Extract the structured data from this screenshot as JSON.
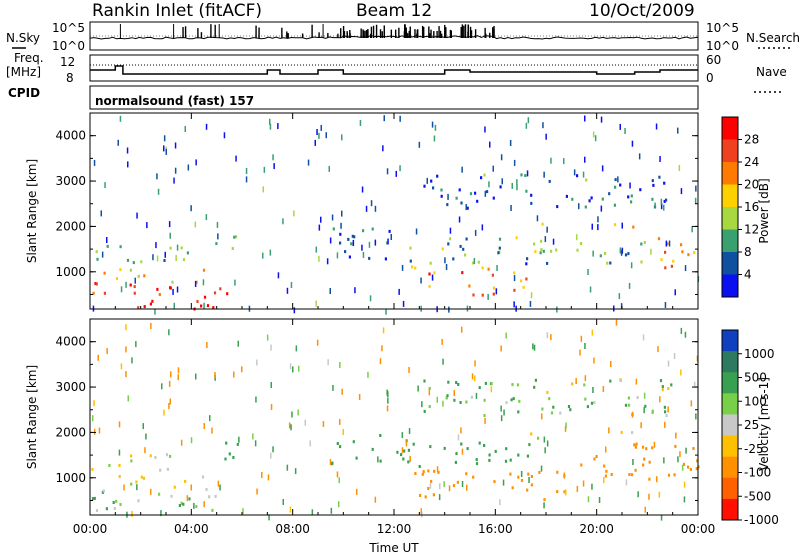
{
  "header": {
    "station": "Rankin Inlet (fitACF)",
    "beam": "Beam 12",
    "date": "10/Oct/2009"
  },
  "panels": {
    "nsky_label": "N.Sky",
    "nsky_ticks": [
      "10^5",
      "10^0"
    ],
    "nsearch_label": "N.Search",
    "nsearch_ticks": [
      "10^5",
      "10^0"
    ],
    "freq_label_1": "Freq.",
    "freq_label_2": "[MHz]",
    "freq_ticks": [
      "12",
      "8"
    ],
    "nave_label": "Nave",
    "nave_ticks": [
      "60",
      "0"
    ],
    "cpid_label": "CPID",
    "cpid_text": "normalsound (fast) 157"
  },
  "axes": {
    "ylabel": "Slant Range [km]",
    "yticks": [
      "4000",
      "3000",
      "2000",
      "1000"
    ],
    "xticks": [
      "00:00",
      "04:00",
      "08:00",
      "12:00",
      "16:00",
      "20:00",
      "00:00"
    ],
    "xlabel": "Time UT"
  },
  "power_colorbar": {
    "label": "Power [dB]",
    "ticks": [
      "28",
      "24",
      "20",
      "16",
      "12",
      "8",
      "4"
    ],
    "colors": [
      "#ff0000",
      "#f04020",
      "#ff7a00",
      "#ffd000",
      "#a8d840",
      "#3aa070",
      "#1050a0",
      "#0a10f0"
    ]
  },
  "velocity_colorbar": {
    "label": "Velocity [m s-1]",
    "ticks": [
      "1000",
      "500",
      "100",
      "25",
      "-25",
      "-100",
      "-500",
      "-1000"
    ],
    "colors": [
      "#1040c0",
      "#2e7a60",
      "#38a050",
      "#78d048",
      "#c8c8c8",
      "#ffc000",
      "#ff9000",
      "#ff6000",
      "#ff1000"
    ]
  },
  "chart_data": [
    {
      "type": "heatmap",
      "title": "Power",
      "xlabel": "Time UT",
      "ylabel": "Slant Range [km]",
      "xlim": [
        "00:00",
        "24:00"
      ],
      "ylim": [
        180,
        4500
      ],
      "colorbar_label": "Power [dB]",
      "colorbar_range": [
        0,
        32
      ],
      "regions": [
        {
          "t0": 0.0,
          "t1": 5.5,
          "r0": 200,
          "r1": 800,
          "value": 30
        },
        {
          "t0": 0.0,
          "t1": 4.5,
          "r0": 800,
          "r1": 1100,
          "value": 16
        },
        {
          "t0": 0.0,
          "t1": 4.0,
          "r0": 1200,
          "r1": 1600,
          "value": 10
        },
        {
          "t0": 4.5,
          "t1": 5.8,
          "r0": 1500,
          "r1": 1900,
          "value": 10
        },
        {
          "t0": 9.5,
          "t1": 12.5,
          "r0": 1300,
          "r1": 2000,
          "value": 6
        },
        {
          "t0": 12.5,
          "t1": 17.5,
          "r0": 500,
          "r1": 1200,
          "value": 24
        },
        {
          "t0": 12.5,
          "t1": 18.0,
          "r0": 1200,
          "r1": 1800,
          "value": 10
        },
        {
          "t0": 17.5,
          "t1": 22.0,
          "r0": 1200,
          "r1": 1700,
          "value": 12
        },
        {
          "t0": 22.0,
          "t1": 24.0,
          "r0": 1100,
          "r1": 1800,
          "value": 22
        },
        {
          "t0": 17.0,
          "t1": 18.0,
          "r0": 1900,
          "r1": 2100,
          "value": 20
        },
        {
          "t0": 20.5,
          "t1": 21.5,
          "r0": 1900,
          "r1": 2100,
          "value": 20
        },
        {
          "t0": 13.0,
          "t1": 23.0,
          "r0": 2400,
          "r1": 3200,
          "value": 6
        }
      ]
    },
    {
      "type": "heatmap",
      "title": "Velocity",
      "xlabel": "Time UT",
      "ylabel": "Slant Range [km]",
      "xlim": [
        "00:00",
        "24:00"
      ],
      "ylim": [
        180,
        4500
      ],
      "colorbar_label": "Velocity [m s-1]",
      "colorbar_range": [
        -1000,
        1000
      ],
      "regions": [
        {
          "t0": 0.0,
          "t1": 5.5,
          "r0": 200,
          "r1": 800,
          "value": 80
        },
        {
          "t0": 0.0,
          "t1": 4.5,
          "r0": 800,
          "r1": 1100,
          "value": 0
        },
        {
          "t0": 0.0,
          "t1": 4.0,
          "r0": 1200,
          "r1": 1600,
          "value": 0
        },
        {
          "t0": 4.5,
          "t1": 5.8,
          "r0": 1400,
          "r1": 1900,
          "value": 300
        },
        {
          "t0": 9.5,
          "t1": 12.5,
          "r0": 1300,
          "r1": 2000,
          "value": 300
        },
        {
          "t0": 12.5,
          "t1": 19.0,
          "r0": 500,
          "r1": 1200,
          "value": -300
        },
        {
          "t0": 12.5,
          "t1": 18.0,
          "r0": 1200,
          "r1": 1800,
          "value": 300
        },
        {
          "t0": 19.0,
          "t1": 24.0,
          "r0": 1000,
          "r1": 1800,
          "value": -300
        },
        {
          "t0": 17.0,
          "t1": 18.0,
          "r0": 1900,
          "r1": 2100,
          "value": 0
        },
        {
          "t0": 20.5,
          "t1": 21.5,
          "r0": 1900,
          "r1": 2100,
          "value": 0
        },
        {
          "t0": 13.0,
          "t1": 23.0,
          "r0": 2400,
          "r1": 3200,
          "value": 60
        }
      ]
    }
  ]
}
